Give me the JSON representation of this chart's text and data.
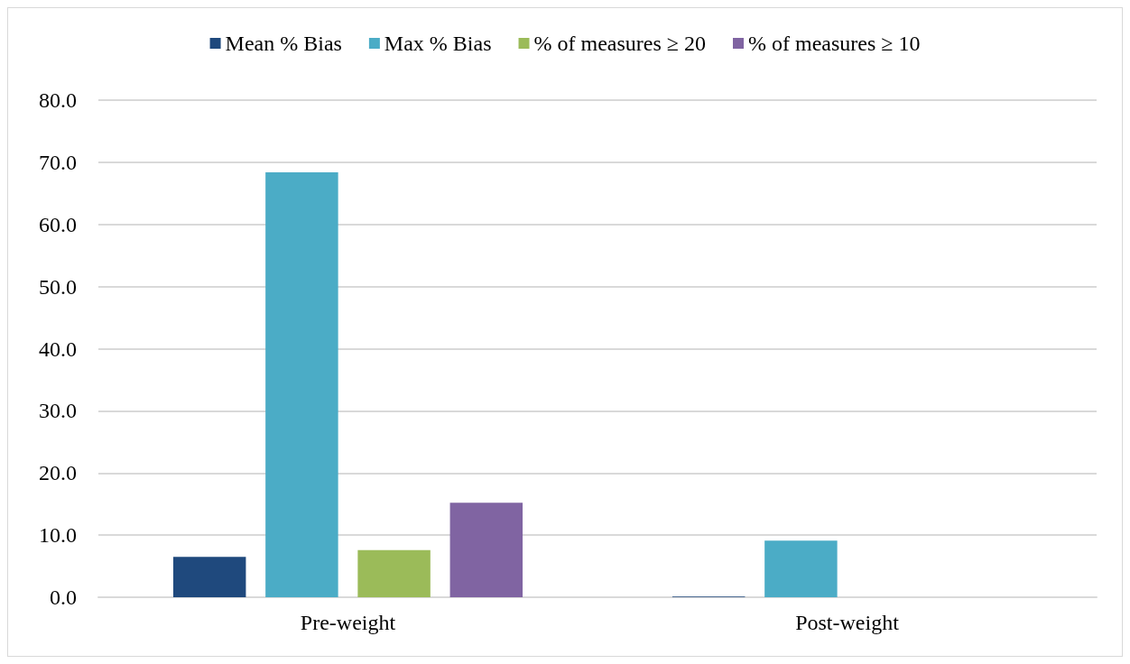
{
  "chart_data": {
    "type": "bar",
    "categories": [
      "Pre-weight",
      "Post-weight"
    ],
    "series": [
      {
        "name": "Mean % Bias",
        "color": "#1f497d",
        "values": [
          6.5,
          0.1
        ]
      },
      {
        "name": "Max % Bias",
        "color": "#4bacc6",
        "values": [
          68.4,
          9.1
        ]
      },
      {
        "name": "% of measures ≥ 20",
        "color": "#9bbb59",
        "values": [
          7.6,
          0
        ]
      },
      {
        "name": "% of measures ≥ 10",
        "color": "#8064a2",
        "values": [
          15.2,
          0
        ]
      }
    ],
    "ylim": [
      0,
      80
    ],
    "yticks": [
      {
        "value": 0,
        "label": "0.0"
      },
      {
        "value": 10,
        "label": "10.0"
      },
      {
        "value": 20,
        "label": "20.0"
      },
      {
        "value": 30,
        "label": "30.0"
      },
      {
        "value": 40,
        "label": "40.0"
      },
      {
        "value": 50,
        "label": "50.0"
      },
      {
        "value": 60,
        "label": "60.0"
      },
      {
        "value": 70,
        "label": "70.0"
      },
      {
        "value": 80,
        "label": "80.0"
      }
    ],
    "grid": true,
    "legend": "top"
  }
}
